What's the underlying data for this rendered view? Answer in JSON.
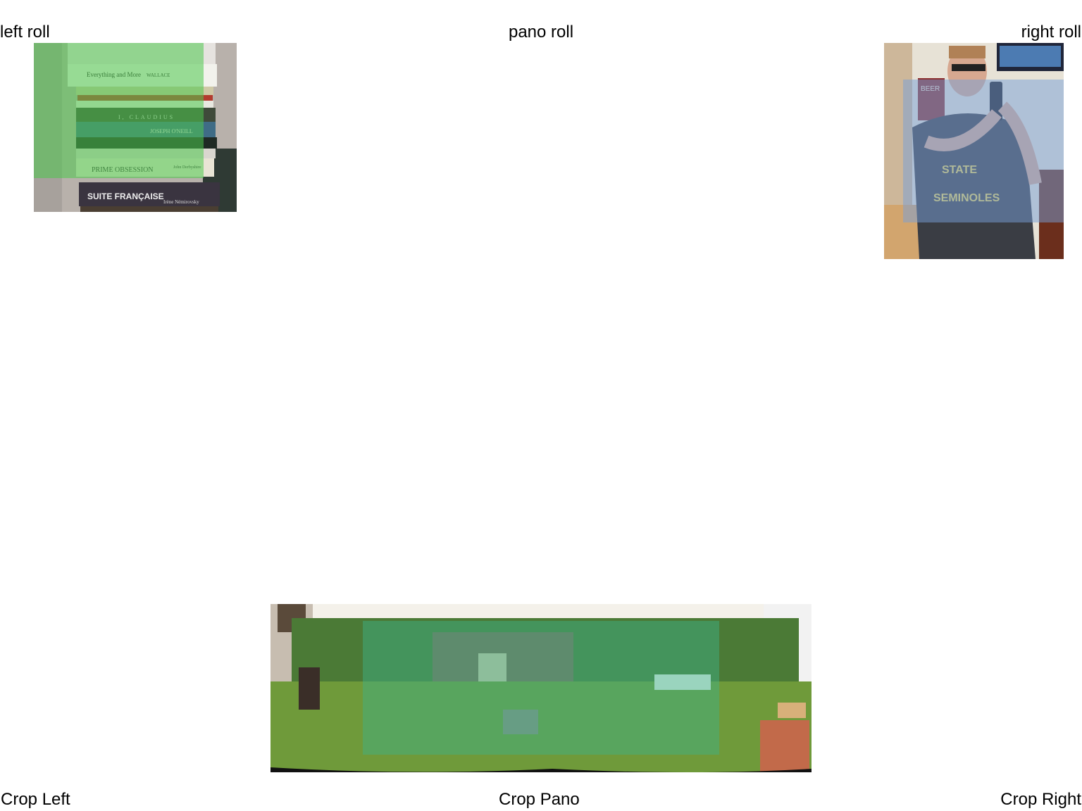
{
  "labels": {
    "left_roll": "left roll",
    "pano_roll": "pano roll",
    "right_roll": "right roll"
  },
  "buttons": {
    "crop_left": "Crop Left",
    "crop_pano": "Crop Pano",
    "crop_right": "Crop Right"
  },
  "books": {
    "titles": [
      "Everything and More",
      "I, CLAUDIUS",
      "JOSEPH O'NEILL",
      "PRIME OBSESSION",
      "SUITE FRANÇAISE"
    ],
    "authors": [
      "WALLACE",
      "John Derbyshire",
      "Irène Némirovsky"
    ]
  },
  "shirt": {
    "line1": "STATE",
    "line2": "SEMINOLES"
  },
  "poster_text": "BEER",
  "colors": {
    "left_overlay": "#4cc84c",
    "right_overlay": "#78a0d7",
    "pano_overlay": "#3cb48c"
  }
}
